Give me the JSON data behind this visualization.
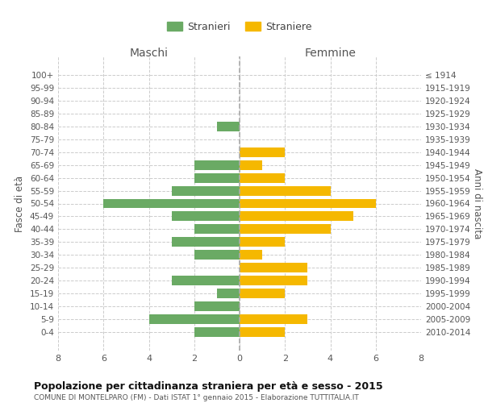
{
  "age_groups": [
    "100+",
    "95-99",
    "90-94",
    "85-89",
    "80-84",
    "75-79",
    "70-74",
    "65-69",
    "60-64",
    "55-59",
    "50-54",
    "45-49",
    "40-44",
    "35-39",
    "30-34",
    "25-29",
    "20-24",
    "15-19",
    "10-14",
    "5-9",
    "0-4"
  ],
  "birth_years": [
    "≤ 1914",
    "1915-1919",
    "1920-1924",
    "1925-1929",
    "1930-1934",
    "1935-1939",
    "1940-1944",
    "1945-1949",
    "1950-1954",
    "1955-1959",
    "1960-1964",
    "1965-1969",
    "1970-1974",
    "1975-1979",
    "1980-1984",
    "1985-1989",
    "1990-1994",
    "1995-1999",
    "2000-2004",
    "2005-2009",
    "2010-2014"
  ],
  "maschi": [
    0,
    0,
    0,
    0,
    1,
    0,
    0,
    2,
    2,
    3,
    6,
    3,
    2,
    3,
    2,
    0,
    3,
    1,
    2,
    4,
    2
  ],
  "femmine": [
    0,
    0,
    0,
    0,
    0,
    0,
    2,
    1,
    2,
    4,
    6,
    5,
    4,
    2,
    1,
    3,
    3,
    2,
    0,
    3,
    2
  ],
  "male_color": "#6aaa64",
  "female_color": "#f5b800",
  "title": "Popolazione per cittadinanza straniera per età e sesso - 2015",
  "subtitle": "COMUNE DI MONTELPARO (FM) - Dati ISTAT 1° gennaio 2015 - Elaborazione TUTTITALIA.IT",
  "xlabel_left": "Maschi",
  "xlabel_right": "Femmine",
  "ylabel": "Fasce di età",
  "ylabel_right": "Anni di nascita",
  "legend_male": "Stranieri",
  "legend_female": "Straniere",
  "xlim": 8,
  "background_color": "#ffffff",
  "grid_color": "#cccccc",
  "bar_height": 0.75
}
